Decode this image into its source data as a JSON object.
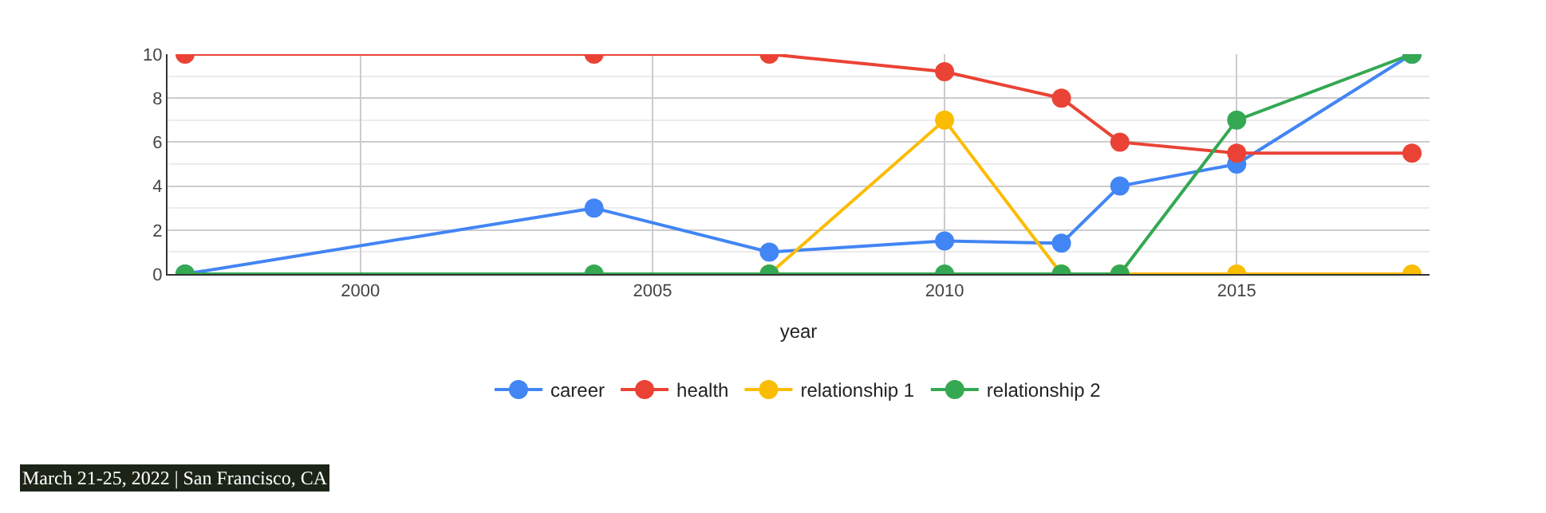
{
  "chart_data": {
    "type": "line",
    "xlabel": "year",
    "x": [
      1997,
      2004,
      2007,
      2010,
      2012,
      2013,
      2015,
      2018
    ],
    "series": [
      {
        "name": "career",
        "color": "#4285f4",
        "values": [
          0,
          3,
          1,
          1.5,
          1.4,
          4,
          5,
          10
        ]
      },
      {
        "name": "health",
        "color": "#ea4335",
        "values": [
          10,
          10,
          10,
          9.2,
          8,
          6,
          5.5,
          5.5
        ]
      },
      {
        "name": "relationship 1",
        "color": "#fbbc04",
        "values": [
          null,
          null,
          0,
          7,
          0,
          0,
          0,
          0
        ]
      },
      {
        "name": "relationship 2",
        "color": "#34a853",
        "values": [
          0,
          0,
          0,
          0,
          0,
          0,
          7,
          10
        ]
      }
    ],
    "xlim": [
      1996.7,
      2018.3
    ],
    "xticks": [
      2000,
      2005,
      2010,
      2015
    ],
    "ylim": [
      0,
      10
    ],
    "yticks": [
      0,
      2,
      4,
      6,
      8,
      10
    ],
    "grid": true,
    "legend": "bottom",
    "marker": "circle",
    "line_style": "solid",
    "annotations": [
      "March 21-25, 2022 | San Francisco, CA"
    ]
  }
}
